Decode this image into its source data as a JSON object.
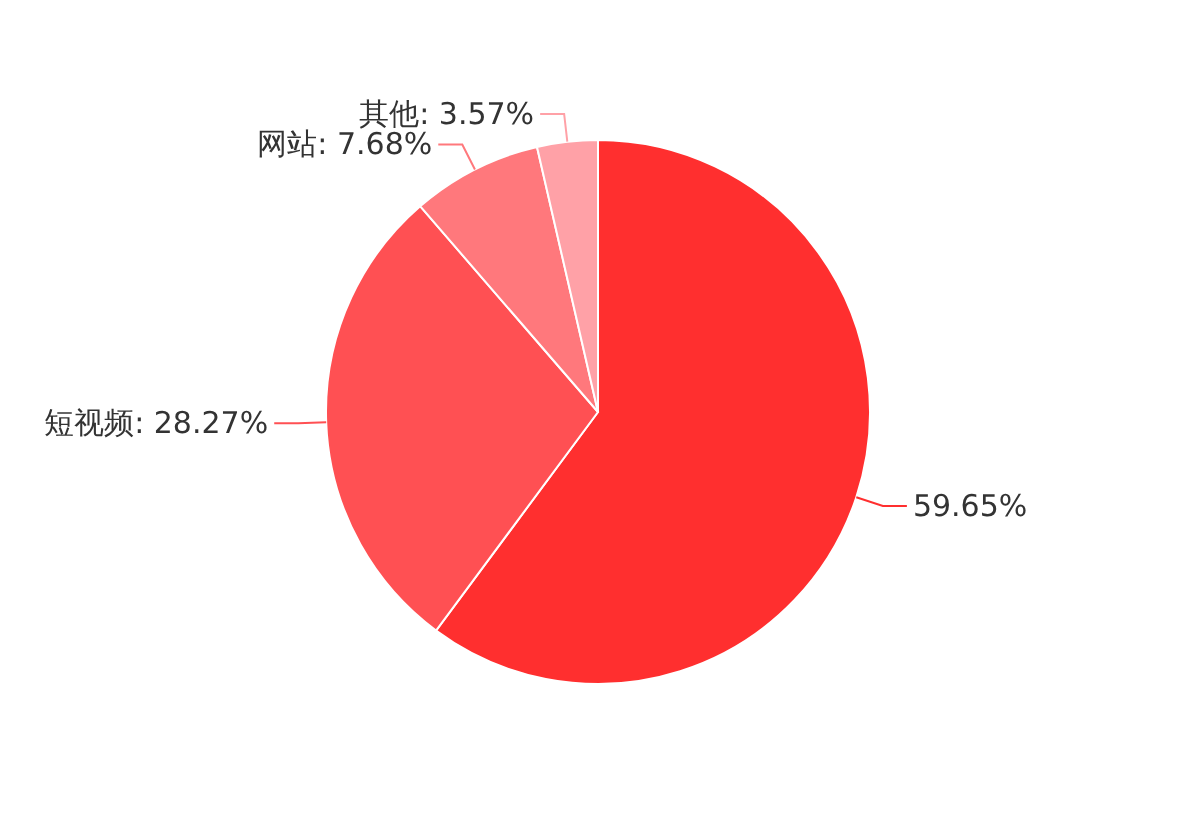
{
  "chart_data": {
    "type": "pie",
    "categories": [
      null,
      "短视频",
      "网站",
      "其他"
    ],
    "values": [
      59.65,
      28.27,
      7.68,
      3.57
    ],
    "value_labels": [
      "59.65%",
      ": 28.27%",
      ": 7.68%",
      ": 3.57%"
    ],
    "colors": [
      "#ff2f2f",
      "#ff5053",
      "#ff787c",
      "#ffa1a7"
    ]
  }
}
